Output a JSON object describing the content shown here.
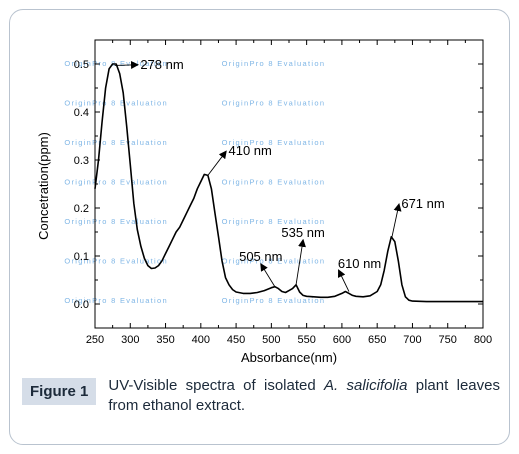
{
  "chart_data": {
    "type": "line",
    "xlabel": "Absorbance(nm)",
    "ylabel": "Concetration(ppm)",
    "xlim": [
      250,
      800
    ],
    "ylim": [
      -0.05,
      0.55
    ],
    "x_ticks": [
      "250",
      "300",
      "350",
      "400",
      "450",
      "500",
      "550",
      "600",
      "650",
      "700",
      "750",
      "800"
    ],
    "y_ticks": [
      "0.0",
      "0.1",
      "0.2",
      "0.3",
      "0.4",
      "0.5"
    ],
    "series": [
      {
        "x": [
          250,
          255,
          260,
          265,
          270,
          275,
          280,
          285,
          290,
          295,
          300,
          305,
          310,
          315,
          320,
          325,
          330,
          335,
          340,
          345,
          350,
          355,
          360,
          365,
          370,
          375,
          380,
          385,
          390,
          395,
          400,
          405,
          410,
          415,
          420,
          425,
          430,
          435,
          440,
          445,
          450,
          460,
          470,
          480,
          490,
          500,
          505,
          510,
          515,
          520,
          525,
          530,
          535,
          540,
          545,
          550,
          560,
          570,
          580,
          590,
          600,
          605,
          610,
          615,
          620,
          630,
          640,
          650,
          655,
          660,
          665,
          670,
          675,
          680,
          685,
          690,
          695,
          700,
          720,
          750,
          780,
          800
        ],
        "y": [
          0.24,
          0.3,
          0.38,
          0.45,
          0.49,
          0.5,
          0.5,
          0.48,
          0.44,
          0.37,
          0.29,
          0.21,
          0.155,
          0.12,
          0.095,
          0.08,
          0.074,
          0.075,
          0.08,
          0.09,
          0.105,
          0.12,
          0.135,
          0.15,
          0.16,
          0.175,
          0.19,
          0.205,
          0.22,
          0.24,
          0.255,
          0.27,
          0.268,
          0.24,
          0.19,
          0.14,
          0.09,
          0.055,
          0.04,
          0.03,
          0.025,
          0.022,
          0.022,
          0.024,
          0.028,
          0.034,
          0.036,
          0.032,
          0.026,
          0.024,
          0.028,
          0.032,
          0.04,
          0.025,
          0.018,
          0.016,
          0.015,
          0.014,
          0.014,
          0.016,
          0.022,
          0.026,
          0.022,
          0.018,
          0.016,
          0.015,
          0.017,
          0.026,
          0.04,
          0.07,
          0.11,
          0.14,
          0.13,
          0.09,
          0.04,
          0.015,
          0.008,
          0.006,
          0.005,
          0.005,
          0.005,
          0.005
        ]
      }
    ],
    "annotations": [
      {
        "text": "278 nm",
        "x": 278,
        "y": 0.497,
        "label_x": 345,
        "label_y": 0.49
      },
      {
        "text": "410 nm",
        "x": 410,
        "y": 0.268,
        "label_x": 470,
        "label_y": 0.31
      },
      {
        "text": "505 nm",
        "x": 505,
        "y": 0.036,
        "label_x": 485,
        "label_y": 0.09
      },
      {
        "text": "535 nm",
        "x": 535,
        "y": 0.04,
        "label_x": 545,
        "label_y": 0.14
      },
      {
        "text": "610 nm",
        "x": 610,
        "y": 0.026,
        "label_x": 625,
        "label_y": 0.075
      },
      {
        "text": "671 nm",
        "x": 671,
        "y": 0.14,
        "label_x": 715,
        "label_y": 0.2
      }
    ],
    "watermark": "OriginPro 8 Evaluation",
    "grid": false,
    "colors": {
      "line": "#000000",
      "watermark": "#7fb6e6"
    }
  },
  "caption": {
    "label": "Figure 1",
    "text_before": "UV-Visible spectra of isolated ",
    "species": "A. salicifolia",
    "text_after": " plant leaves from ethanol extract."
  }
}
